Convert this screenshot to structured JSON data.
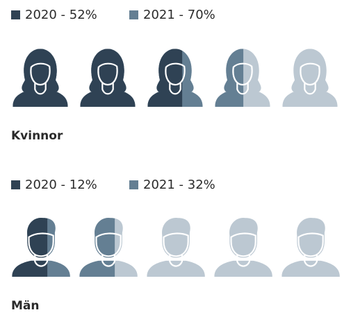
{
  "chart_data": [
    {
      "type": "pictogram",
      "icon": "female",
      "title": "Kvinnor",
      "icons": 5,
      "xlim": [
        0,
        100
      ],
      "background_color": "#bcc8d2",
      "series": [
        {
          "name": "2020 - 52%",
          "color": "#2f4254",
          "values": [
            52
          ]
        },
        {
          "name": "2021 - 70%",
          "color": "#647f93",
          "values": [
            70
          ]
        }
      ]
    },
    {
      "type": "pictogram",
      "icon": "male",
      "title": "Män",
      "icons": 5,
      "xlim": [
        0,
        100
      ],
      "background_color": "#bcc8d2",
      "series": [
        {
          "name": "2020 - 12%",
          "color": "#2f4254",
          "values": [
            12
          ]
        },
        {
          "name": "2021 - 32%",
          "color": "#647f93",
          "values": [
            32
          ]
        }
      ]
    }
  ]
}
